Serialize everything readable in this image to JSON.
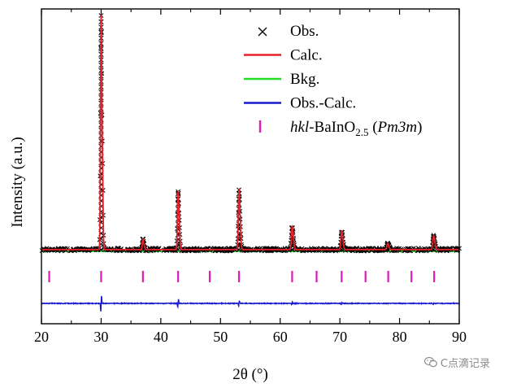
{
  "chart_data": {
    "type": "line",
    "xlabel": "2θ (°)",
    "ylabel": "Intensity (a.u.)",
    "xlim": [
      20,
      90
    ],
    "x_ticks": [
      20,
      30,
      40,
      50,
      60,
      70,
      80,
      90
    ],
    "y_tick_labels": "none",
    "grid": false,
    "legend_position": "top-right",
    "legend": [
      {
        "key": "obs",
        "label": "Obs.",
        "marker": "x",
        "color": "#000000"
      },
      {
        "key": "calc",
        "label": "Calc.",
        "marker": "line",
        "color": "#e8202a"
      },
      {
        "key": "bkg",
        "label": "Bkg.",
        "marker": "line",
        "color": "#22dd22"
      },
      {
        "key": "diff",
        "label": "Obs.-Calc.",
        "marker": "line",
        "color": "#1a1acc"
      },
      {
        "key": "hkl",
        "label_italic": "hkl",
        "label_main": "-BaInO",
        "label_sub": "2.5",
        "label_open": " (",
        "label_italic2": "Pm3m",
        "label_close": ")",
        "marker": "tick",
        "color": "#e01ab8"
      }
    ],
    "background_level": 0.04,
    "peaks": [
      {
        "two_theta": 30.0,
        "intensity": 1.0,
        "width": 0.14
      },
      {
        "two_theta": 37.0,
        "intensity": 0.045,
        "width": 0.14
      },
      {
        "two_theta": 42.9,
        "intensity": 0.245,
        "width": 0.15
      },
      {
        "two_theta": 53.1,
        "intensity": 0.245,
        "width": 0.16
      },
      {
        "two_theta": 62.0,
        "intensity": 0.095,
        "width": 0.17
      },
      {
        "two_theta": 70.3,
        "intensity": 0.075,
        "width": 0.18
      },
      {
        "two_theta": 78.0,
        "intensity": 0.025,
        "width": 0.18
      },
      {
        "two_theta": 85.7,
        "intensity": 0.055,
        "width": 0.19
      }
    ],
    "hkl_positions": [
      21.3,
      30.0,
      37.0,
      42.9,
      48.2,
      53.1,
      62.0,
      66.1,
      70.3,
      74.3,
      78.1,
      82.0,
      85.8
    ],
    "difference_features": [
      {
        "two_theta": 30.0,
        "amplitude": 0.12
      },
      {
        "two_theta": 42.9,
        "amplitude": 0.06
      },
      {
        "two_theta": 53.1,
        "amplitude": 0.04
      },
      {
        "two_theta": 62.0,
        "amplitude": 0.02
      },
      {
        "two_theta": 70.3,
        "amplitude": 0.015
      },
      {
        "two_theta": 85.7,
        "amplitude": 0.012
      }
    ]
  },
  "watermark": {
    "icon": "wechat-icon",
    "text": "C点滴记录"
  }
}
